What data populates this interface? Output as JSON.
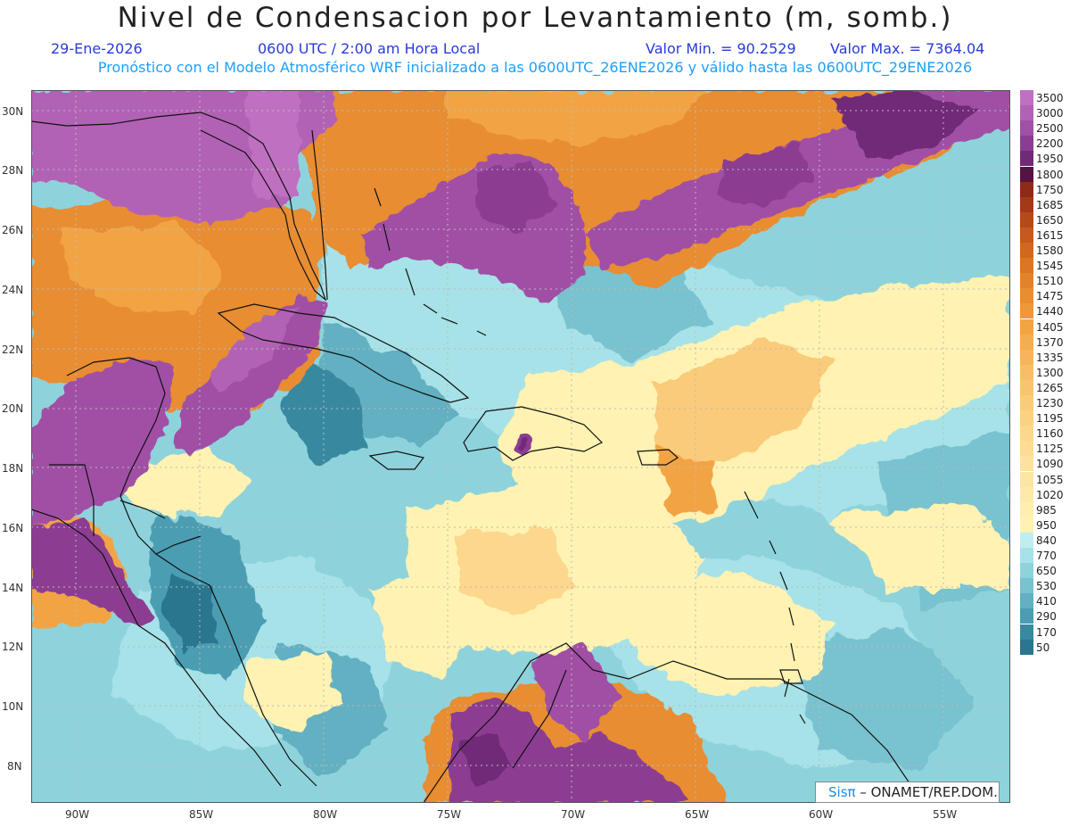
{
  "header": {
    "title": "Nivel de Condensacion por Levantamiento (m, somb.)",
    "date": "29-Ene-2026",
    "time": "0600 UTC / 2:00 am Hora Local",
    "min_label": "Valor Min. = 90.2529",
    "max_label": "Valor Max. = 7364.04",
    "description": "Pronóstico con el Modelo Atmosférico WRF inicializado a las 0600UTC_26ENE2026 y válido hasta las  0600UTC_29ENE2026"
  },
  "axes": {
    "lat_labels": [
      "30N",
      "28N",
      "26N",
      "24N",
      "22N",
      "20N",
      "18N",
      "16N",
      "14N",
      "12N",
      "10N",
      "8N"
    ],
    "lon_labels": [
      "90W",
      "85W",
      "80W",
      "75W",
      "70W",
      "65W",
      "60W",
      "55W"
    ]
  },
  "legend": {
    "entries": [
      {
        "label": "3500",
        "color": "#c070c0"
      },
      {
        "label": "3000",
        "color": "#b262b5"
      },
      {
        "label": "2500",
        "color": "#a050a5"
      },
      {
        "label": "2200",
        "color": "#8c3c92"
      },
      {
        "label": "1950",
        "color": "#702a78"
      },
      {
        "label": "1800",
        "color": "#55133f"
      },
      {
        "label": "1750",
        "color": "#8e2a18"
      },
      {
        "label": "1685",
        "color": "#a23a16"
      },
      {
        "label": "1650",
        "color": "#b44a1a"
      },
      {
        "label": "1615",
        "color": "#c45a1e"
      },
      {
        "label": "1580",
        "color": "#d0681f"
      },
      {
        "label": "1545",
        "color": "#da7624"
      },
      {
        "label": "1510",
        "color": "#e2832b"
      },
      {
        "label": "1475",
        "color": "#e88d30"
      },
      {
        "label": "1440",
        "color": "#ee9838"
      },
      {
        "label": "1405",
        "color": "#f2a444"
      },
      {
        "label": "1370",
        "color": "#f4ad50"
      },
      {
        "label": "1335",
        "color": "#f6b55c"
      },
      {
        "label": "1300",
        "color": "#f8bd66"
      },
      {
        "label": "1265",
        "color": "#f9c470"
      },
      {
        "label": "1230",
        "color": "#facb7a"
      },
      {
        "label": "1195",
        "color": "#fbd184"
      },
      {
        "label": "1160",
        "color": "#fcd78d"
      },
      {
        "label": "1125",
        "color": "#fddc96"
      },
      {
        "label": "1090",
        "color": "#fde19e"
      },
      {
        "label": "1055",
        "color": "#fde6a4"
      },
      {
        "label": "1020",
        "color": "#feeaa8"
      },
      {
        "label": "985",
        "color": "#ffeeae"
      },
      {
        "label": "950",
        "color": "#fff2b2"
      },
      {
        "label": "840",
        "color": "#bfeef0"
      },
      {
        "label": "770",
        "color": "#a6e2e8"
      },
      {
        "label": "650",
        "color": "#8ed3dc"
      },
      {
        "label": "530",
        "color": "#79c2cf"
      },
      {
        "label": "410",
        "color": "#62b0c1"
      },
      {
        "label": "290",
        "color": "#4c9db2"
      },
      {
        "label": "170",
        "color": "#3989a0"
      },
      {
        "label": "50",
        "color": "#2a768e"
      }
    ]
  },
  "credit": {
    "sis": "Sisπ",
    "org": " – ONAMET/REP.DOM."
  }
}
